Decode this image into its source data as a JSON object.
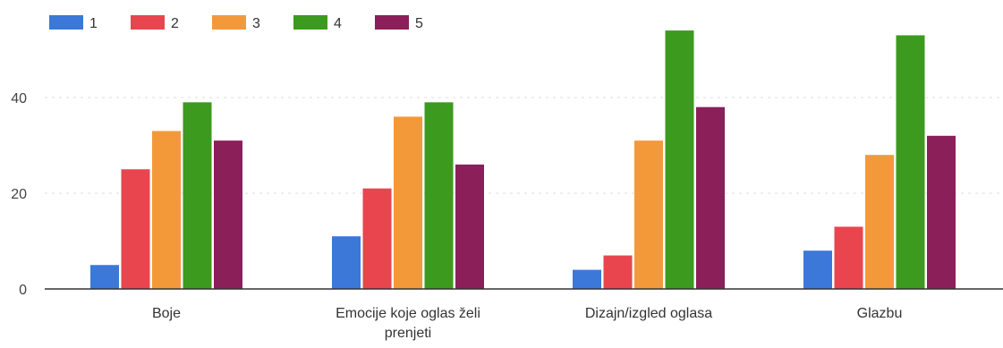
{
  "chart_data": {
    "type": "bar",
    "title": "",
    "xlabel": "",
    "ylabel": "",
    "categories": [
      "Boje",
      "Emocije koje oglas želi prenjeti",
      "Dizajn/izgled oglasa",
      "Glazbu"
    ],
    "category_lines": [
      [
        "Boje"
      ],
      [
        "Emocije koje oglas želi",
        "prenjeti"
      ],
      [
        "Dizajn/izgled oglasa"
      ],
      [
        "Glazbu"
      ]
    ],
    "series": [
      {
        "name": "1",
        "color": "#3b78d8",
        "values": [
          5,
          11,
          4,
          8
        ]
      },
      {
        "name": "2",
        "color": "#e8454e",
        "values": [
          25,
          21,
          7,
          13
        ]
      },
      {
        "name": "3",
        "color": "#f4993a",
        "values": [
          33,
          36,
          31,
          28
        ]
      },
      {
        "name": "4",
        "color": "#3c9a1e",
        "values": [
          39,
          39,
          54,
          53
        ]
      },
      {
        "name": "5",
        "color": "#8a1f5a",
        "values": [
          31,
          26,
          38,
          32
        ]
      }
    ],
    "ylim": [
      0,
      60
    ],
    "yticks": [
      0,
      20,
      40
    ],
    "grid": true,
    "legend": "top-left"
  }
}
